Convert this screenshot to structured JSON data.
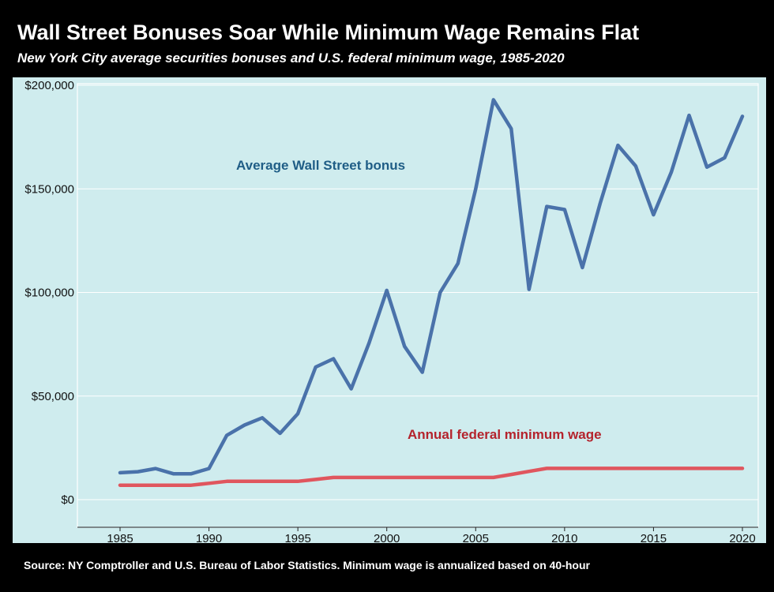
{
  "header": {
    "title": "Wall Street Bonuses Soar While Minimum Wage Remains Flat",
    "subtitle": "New York City average securities bonuses and U.S. federal minimum wage, 1985-2020"
  },
  "footer": {
    "source": "Source: NY Comptroller and U.S. Bureau of Labor Statistics. Minimum wage is annualized based on 40-hour"
  },
  "colors": {
    "background": "#cfecee",
    "bonus": "#4a72aa",
    "wage": "#e0565e",
    "bonus_label": "#1f5d86",
    "wage_label": "#b4232c",
    "frame": "#000000"
  },
  "chart_data": {
    "type": "line",
    "title": "Wall Street Bonuses Soar While Minimum Wage Remains Flat",
    "subtitle": "New York City average securities bonuses and U.S. federal minimum wage, 1985-2020",
    "x": [
      1985,
      1986,
      1987,
      1988,
      1989,
      1990,
      1991,
      1992,
      1993,
      1994,
      1995,
      1996,
      1997,
      1998,
      1999,
      2000,
      2001,
      2002,
      2003,
      2004,
      2005,
      2006,
      2007,
      2008,
      2009,
      2010,
      2011,
      2012,
      2013,
      2014,
      2015,
      2016,
      2017,
      2018,
      2019,
      2020
    ],
    "x_ticks": [
      "1985",
      "1990",
      "1995",
      "2000",
      "2005",
      "2010",
      "2015",
      "2020"
    ],
    "x_tick_values": [
      1985,
      1990,
      1995,
      2000,
      2005,
      2010,
      2015,
      2020
    ],
    "y_ticks": [
      "$0",
      "$50,000",
      "$100,000",
      "$150,000",
      "$200,000"
    ],
    "y_tick_values": [
      0,
      50000,
      100000,
      150000,
      200000
    ],
    "xlim": [
      1985,
      2020
    ],
    "ylim": [
      0,
      200000
    ],
    "grid": true,
    "legend": "inline labels",
    "series": [
      {
        "name": "Average Wall Street bonus",
        "color": "#4a72aa",
        "values": [
          13000,
          13500,
          15000,
          12500,
          12500,
          15000,
          31000,
          36000,
          39500,
          32000,
          41500,
          64000,
          68000,
          53500,
          75500,
          101000,
          74000,
          61500,
          100000,
          114000,
          150000,
          193000,
          179000,
          101500,
          141500,
          140000,
          112000,
          143000,
          171000,
          161000,
          137500,
          158000,
          185500,
          160500,
          165000,
          185000
        ]
      },
      {
        "name": "Annual federal minimum wage",
        "color": "#e0565e",
        "values": [
          6968,
          6968,
          6968,
          6968,
          6968,
          7904,
          8840,
          8840,
          8840,
          8840,
          8840,
          9734,
          10712,
          10712,
          10712,
          10712,
          10712,
          10712,
          10712,
          10712,
          10712,
          10712,
          12168,
          13624,
          15080,
          15080,
          15080,
          15080,
          15080,
          15080,
          15080,
          15080,
          15080,
          15080,
          15080,
          15080
        ]
      }
    ]
  }
}
